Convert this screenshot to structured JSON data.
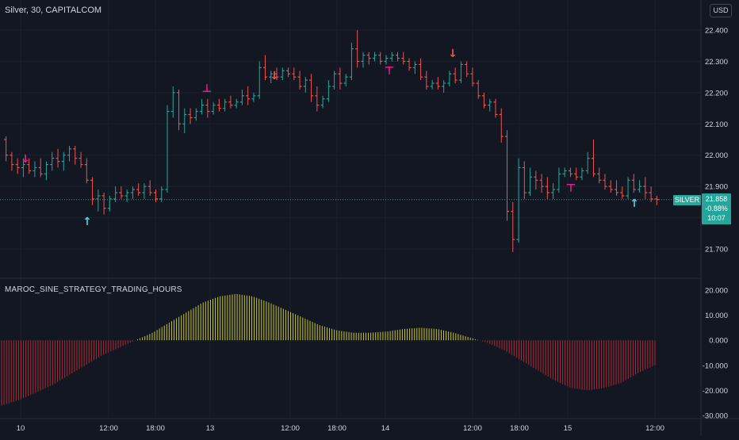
{
  "header": {
    "title": "Silver, 30, CAPITALCOM"
  },
  "currency_button": "USD",
  "last_price": {
    "symbol": "SILVER",
    "price": "21.858",
    "change": "-0.88%",
    "countdown": "10:07"
  },
  "indicator": {
    "title": "MAROC_SINE_STRATEGY_TRADING_HOURS"
  },
  "colors": {
    "background": "#131722",
    "up": "#26a69a",
    "down": "#ef5350",
    "osc_pos": "#c6c631",
    "osc_neg": "#b22833",
    "signal_magenta": "#e91e8c"
  },
  "chart_data": [
    {
      "type": "candlestick",
      "series": [
        {
          "name": "Silver",
          "values": [
            [
              22.05,
              22.06,
              21.98,
              22.0
            ],
            [
              22.0,
              22.01,
              21.95,
              21.97
            ],
            [
              21.97,
              21.99,
              21.94,
              21.96
            ],
            [
              21.96,
              21.99,
              21.93,
              21.97
            ],
            [
              21.97,
              21.99,
              21.94,
              21.95
            ],
            [
              21.95,
              21.98,
              21.93,
              21.96
            ],
            [
              21.96,
              21.99,
              21.93,
              21.94
            ],
            [
              21.94,
              21.98,
              21.92,
              21.97
            ],
            [
              21.97,
              22.01,
              21.95,
              21.99
            ],
            [
              21.99,
              22.02,
              21.96,
              21.98
            ],
            [
              21.98,
              22.01,
              21.95,
              22.0
            ],
            [
              22.0,
              22.03,
              21.98,
              22.02
            ],
            [
              22.02,
              22.03,
              21.97,
              21.99
            ],
            [
              21.99,
              22.01,
              21.96,
              21.97
            ],
            [
              21.97,
              21.99,
              21.91,
              21.92
            ],
            [
              21.92,
              21.93,
              21.84,
              21.86
            ],
            [
              21.86,
              21.89,
              21.82,
              21.87
            ],
            [
              21.87,
              21.88,
              21.81,
              21.83
            ],
            [
              21.83,
              21.87,
              21.82,
              21.86
            ],
            [
              21.86,
              21.9,
              21.85,
              21.88
            ],
            [
              21.88,
              21.9,
              21.86,
              21.87
            ],
            [
              21.87,
              21.89,
              21.85,
              21.88
            ],
            [
              21.88,
              21.9,
              21.86,
              21.89
            ],
            [
              21.89,
              21.91,
              21.87,
              21.88
            ],
            [
              21.88,
              21.91,
              21.86,
              21.9
            ],
            [
              21.9,
              21.92,
              21.87,
              21.88
            ],
            [
              21.88,
              21.89,
              21.85,
              21.86
            ],
            [
              21.86,
              21.9,
              21.85,
              21.89
            ],
            [
              21.89,
              22.16,
              21.88,
              22.14
            ],
            [
              22.14,
              22.22,
              22.12,
              22.2
            ],
            [
              22.2,
              22.21,
              22.08,
              22.1
            ],
            [
              22.1,
              22.15,
              22.07,
              22.13
            ],
            [
              22.13,
              22.15,
              22.1,
              22.12
            ],
            [
              22.12,
              22.15,
              22.11,
              22.14
            ],
            [
              22.14,
              22.18,
              22.13,
              22.16
            ],
            [
              22.16,
              22.18,
              22.12,
              22.14
            ],
            [
              22.14,
              22.17,
              22.13,
              22.16
            ],
            [
              22.16,
              22.18,
              22.14,
              22.15
            ],
            [
              22.15,
              22.18,
              22.14,
              22.17
            ],
            [
              22.17,
              22.19,
              22.15,
              22.16
            ],
            [
              22.16,
              22.18,
              22.15,
              22.17
            ],
            [
              22.17,
              22.21,
              22.16,
              22.19
            ],
            [
              22.19,
              22.22,
              22.16,
              22.18
            ],
            [
              22.18,
              22.2,
              22.17,
              22.19
            ],
            [
              22.19,
              22.3,
              22.18,
              22.28
            ],
            [
              22.28,
              22.32,
              22.24,
              22.25
            ],
            [
              22.25,
              22.27,
              22.23,
              22.26
            ],
            [
              22.26,
              22.28,
              22.24,
              22.25
            ],
            [
              22.25,
              22.28,
              22.24,
              22.27
            ],
            [
              22.27,
              22.28,
              22.25,
              22.26
            ],
            [
              22.26,
              22.28,
              22.24,
              22.25
            ],
            [
              22.25,
              22.27,
              22.21,
              22.22
            ],
            [
              22.22,
              22.25,
              22.2,
              22.24
            ],
            [
              22.24,
              22.26,
              22.17,
              22.19
            ],
            [
              22.19,
              22.22,
              22.14,
              22.16
            ],
            [
              22.16,
              22.19,
              22.15,
              22.18
            ],
            [
              22.18,
              22.24,
              22.17,
              22.22
            ],
            [
              22.22,
              22.27,
              22.21,
              22.26
            ],
            [
              22.26,
              22.28,
              22.21,
              22.23
            ],
            [
              22.23,
              22.26,
              22.22,
              22.25
            ],
            [
              22.25,
              22.36,
              22.24,
              22.34
            ],
            [
              22.34,
              22.4,
              22.28,
              22.3
            ],
            [
              22.3,
              22.33,
              22.28,
              22.32
            ],
            [
              22.32,
              22.33,
              22.29,
              22.31
            ],
            [
              22.31,
              22.33,
              22.3,
              22.32
            ],
            [
              22.32,
              22.33,
              22.29,
              22.3
            ],
            [
              22.3,
              22.32,
              22.29,
              22.31
            ],
            [
              22.31,
              22.33,
              22.3,
              22.32
            ],
            [
              22.32,
              22.33,
              22.3,
              22.31
            ],
            [
              22.31,
              22.33,
              22.29,
              22.3
            ],
            [
              22.3,
              22.31,
              22.27,
              22.28
            ],
            [
              22.28,
              22.3,
              22.26,
              22.29
            ],
            [
              22.29,
              22.31,
              22.24,
              22.25
            ],
            [
              22.25,
              22.27,
              22.21,
              22.22
            ],
            [
              22.22,
              22.24,
              22.21,
              22.23
            ],
            [
              22.23,
              22.25,
              22.21,
              22.22
            ],
            [
              22.22,
              22.24,
              22.2,
              22.23
            ],
            [
              22.23,
              22.27,
              22.22,
              22.26
            ],
            [
              22.26,
              22.28,
              22.23,
              22.24
            ],
            [
              22.24,
              22.3,
              22.23,
              22.29
            ],
            [
              22.29,
              22.3,
              22.25,
              22.26
            ],
            [
              22.26,
              22.28,
              22.22,
              22.23
            ],
            [
              22.23,
              22.24,
              22.18,
              22.19
            ],
            [
              22.19,
              22.2,
              22.15,
              22.16
            ],
            [
              22.16,
              22.18,
              22.14,
              22.17
            ],
            [
              22.17,
              22.18,
              22.12,
              22.13
            ],
            [
              22.13,
              22.15,
              22.04,
              22.06
            ],
            [
              22.06,
              22.08,
              21.79,
              21.82
            ],
            [
              21.82,
              21.85,
              21.69,
              21.73
            ],
            [
              21.73,
              21.99,
              21.72,
              21.96
            ],
            [
              21.96,
              21.98,
              21.86,
              21.88
            ],
            [
              21.88,
              21.96,
              21.87,
              21.93
            ],
            [
              21.93,
              21.95,
              21.89,
              21.92
            ],
            [
              21.92,
              21.94,
              21.88,
              21.9
            ],
            [
              21.9,
              21.93,
              21.86,
              21.88
            ],
            [
              21.88,
              21.91,
              21.86,
              21.89
            ],
            [
              21.89,
              21.96,
              21.88,
              21.94
            ],
            [
              21.94,
              21.96,
              21.93,
              21.95
            ],
            [
              21.95,
              21.96,
              21.93,
              21.94
            ],
            [
              21.94,
              21.96,
              21.92,
              21.93
            ],
            [
              21.93,
              21.96,
              21.92,
              21.95
            ],
            [
              21.95,
              22.01,
              21.94,
              21.99
            ],
            [
              21.99,
              22.05,
              21.93,
              21.94
            ],
            [
              21.94,
              21.96,
              21.91,
              21.92
            ],
            [
              21.92,
              21.94,
              21.89,
              21.9
            ],
            [
              21.9,
              21.92,
              21.88,
              21.89
            ],
            [
              21.89,
              21.92,
              21.87,
              21.88
            ],
            [
              21.88,
              21.9,
              21.86,
              21.87
            ],
            [
              21.87,
              21.93,
              21.86,
              21.92
            ],
            [
              21.92,
              21.94,
              21.88,
              21.89
            ],
            [
              21.89,
              21.92,
              21.88,
              21.9
            ],
            [
              21.9,
              21.93,
              21.86,
              21.88
            ],
            [
              21.88,
              21.9,
              21.85,
              21.86
            ],
            [
              21.86,
              21.87,
              21.84,
              21.858
            ]
          ]
        }
      ],
      "columns": [
        "open",
        "high",
        "low",
        "close"
      ],
      "y_ticks": [
        "22.400",
        "22.300",
        "22.200",
        "22.100",
        "22.000",
        "21.900",
        "21.800",
        "21.700"
      ],
      "x_ticks": [
        "10",
        "12:00",
        "18:00",
        "13",
        "12:00",
        "18:00",
        "14",
        "12:00",
        "18:00",
        "15",
        "12:00"
      ],
      "ylim": [
        21.64,
        22.46
      ]
    },
    {
      "type": "bar",
      "title": "MAROC_SINE_STRATEGY_TRADING_HOURS",
      "series": [
        {
          "values": [
            -26,
            -24,
            -21,
            -18,
            -14,
            -10,
            -6,
            -3,
            0,
            3,
            7,
            11,
            15,
            17.5,
            18.5,
            17.5,
            15,
            12,
            9,
            6,
            4,
            3,
            3,
            3.5,
            4.5,
            5,
            4.5,
            3,
            1,
            -1,
            -4,
            -8,
            -12,
            -16,
            -19,
            -20,
            -19,
            -17,
            -13,
            -10
          ]
        }
      ],
      "x_range": [
        "10",
        "12:00 (15)"
      ],
      "y_ticks": [
        "20.000",
        "10.000",
        "0.000",
        "-10.000",
        "-20.000",
        "-30.000"
      ],
      "ylim": [
        -31,
        22
      ]
    }
  ],
  "signals": {
    "up_arrow": "↑",
    "down_arrow": "↓",
    "tbar_up": "⊥",
    "tbar_down": "⊤"
  }
}
